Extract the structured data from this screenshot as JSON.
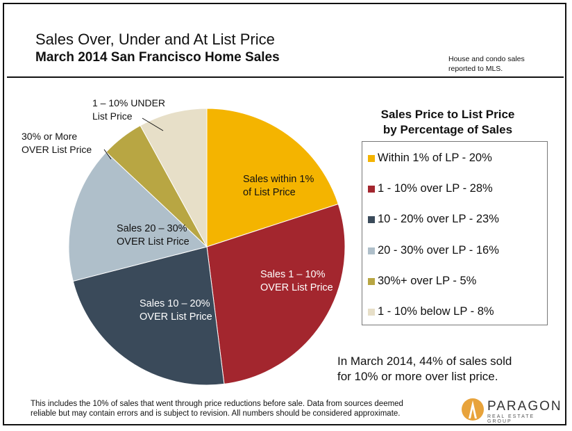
{
  "header": {
    "title": "Sales Over, Under and At List Price",
    "subtitle": "March 2014 San Francisco Home Sales",
    "note": "House and condo sales reported to MLS."
  },
  "legend": {
    "title_line1": "Sales Price to List Price",
    "title_line2": "by Percentage of Sales",
    "items": [
      {
        "label": "Within 1% of LP - 20%",
        "color": "#F4B400"
      },
      {
        "label": "1 - 10% over LP - 28%",
        "color": "#A3262E"
      },
      {
        "label": "10 - 20% over LP - 23%",
        "color": "#3A4A5A"
      },
      {
        "label": "20 - 30% over LP - 16%",
        "color": "#AFBFCA"
      },
      {
        "label": "30%+ over LP - 5%",
        "color": "#B8A643"
      },
      {
        "label": "1 - 10% below LP - 8%",
        "color": "#E7DFC8"
      }
    ]
  },
  "chart_data": {
    "type": "pie",
    "title": "Sales Over, Under and At List Price",
    "subtitle": "March 2014 San Francisco Home Sales",
    "legend_title": "Sales Price to List Price by Percentage of Sales",
    "legend_position": "right",
    "slices": [
      {
        "name": "Sales within 1% of List Price",
        "value": 20,
        "color": "#F4B400",
        "label_lines": [
          "Sales within 1%",
          "of List Price"
        ],
        "label_color": "#111111"
      },
      {
        "name": "Sales 1 – 10% OVER List Price",
        "value": 28,
        "color": "#A3262E",
        "label_lines": [
          "Sales 1 – 10%",
          "OVER List Price"
        ],
        "label_color": "#ffffff"
      },
      {
        "name": "Sales 10 – 20% OVER List Price",
        "value": 23,
        "color": "#3A4A5A",
        "label_lines": [
          "Sales 10 – 20%",
          "OVER List Price"
        ],
        "label_color": "#ffffff"
      },
      {
        "name": "Sales 20 – 30% OVER List Price",
        "value": 16,
        "color": "#AFBFCA",
        "label_lines": [
          "Sales 20 – 30%",
          "OVER List Price"
        ],
        "label_color": "#111111"
      },
      {
        "name": "30% or More OVER List Price",
        "value": 5,
        "color": "#B8A643",
        "label_lines": [
          "30% or More",
          "OVER List Price"
        ],
        "label_color": "#111111"
      },
      {
        "name": "1 – 10% UNDER List Price",
        "value": 8,
        "color": "#E7DFC8",
        "label_lines": [
          "1 – 10% UNDER",
          "List Price"
        ],
        "label_color": "#111111"
      }
    ]
  },
  "summary": {
    "line1": "In March 2014, 44% of sales sold",
    "line2": "for 10% or more over list price."
  },
  "footer": {
    "line1": "This includes the 10% of sales that went through price reductions before sale. Data from sources deemed",
    "line2": "reliable but may contain errors and is subject to revision. All numbers should be considered approximate."
  },
  "logo": {
    "name": "PARAGON",
    "tagline": "REAL ESTATE GROUP"
  }
}
